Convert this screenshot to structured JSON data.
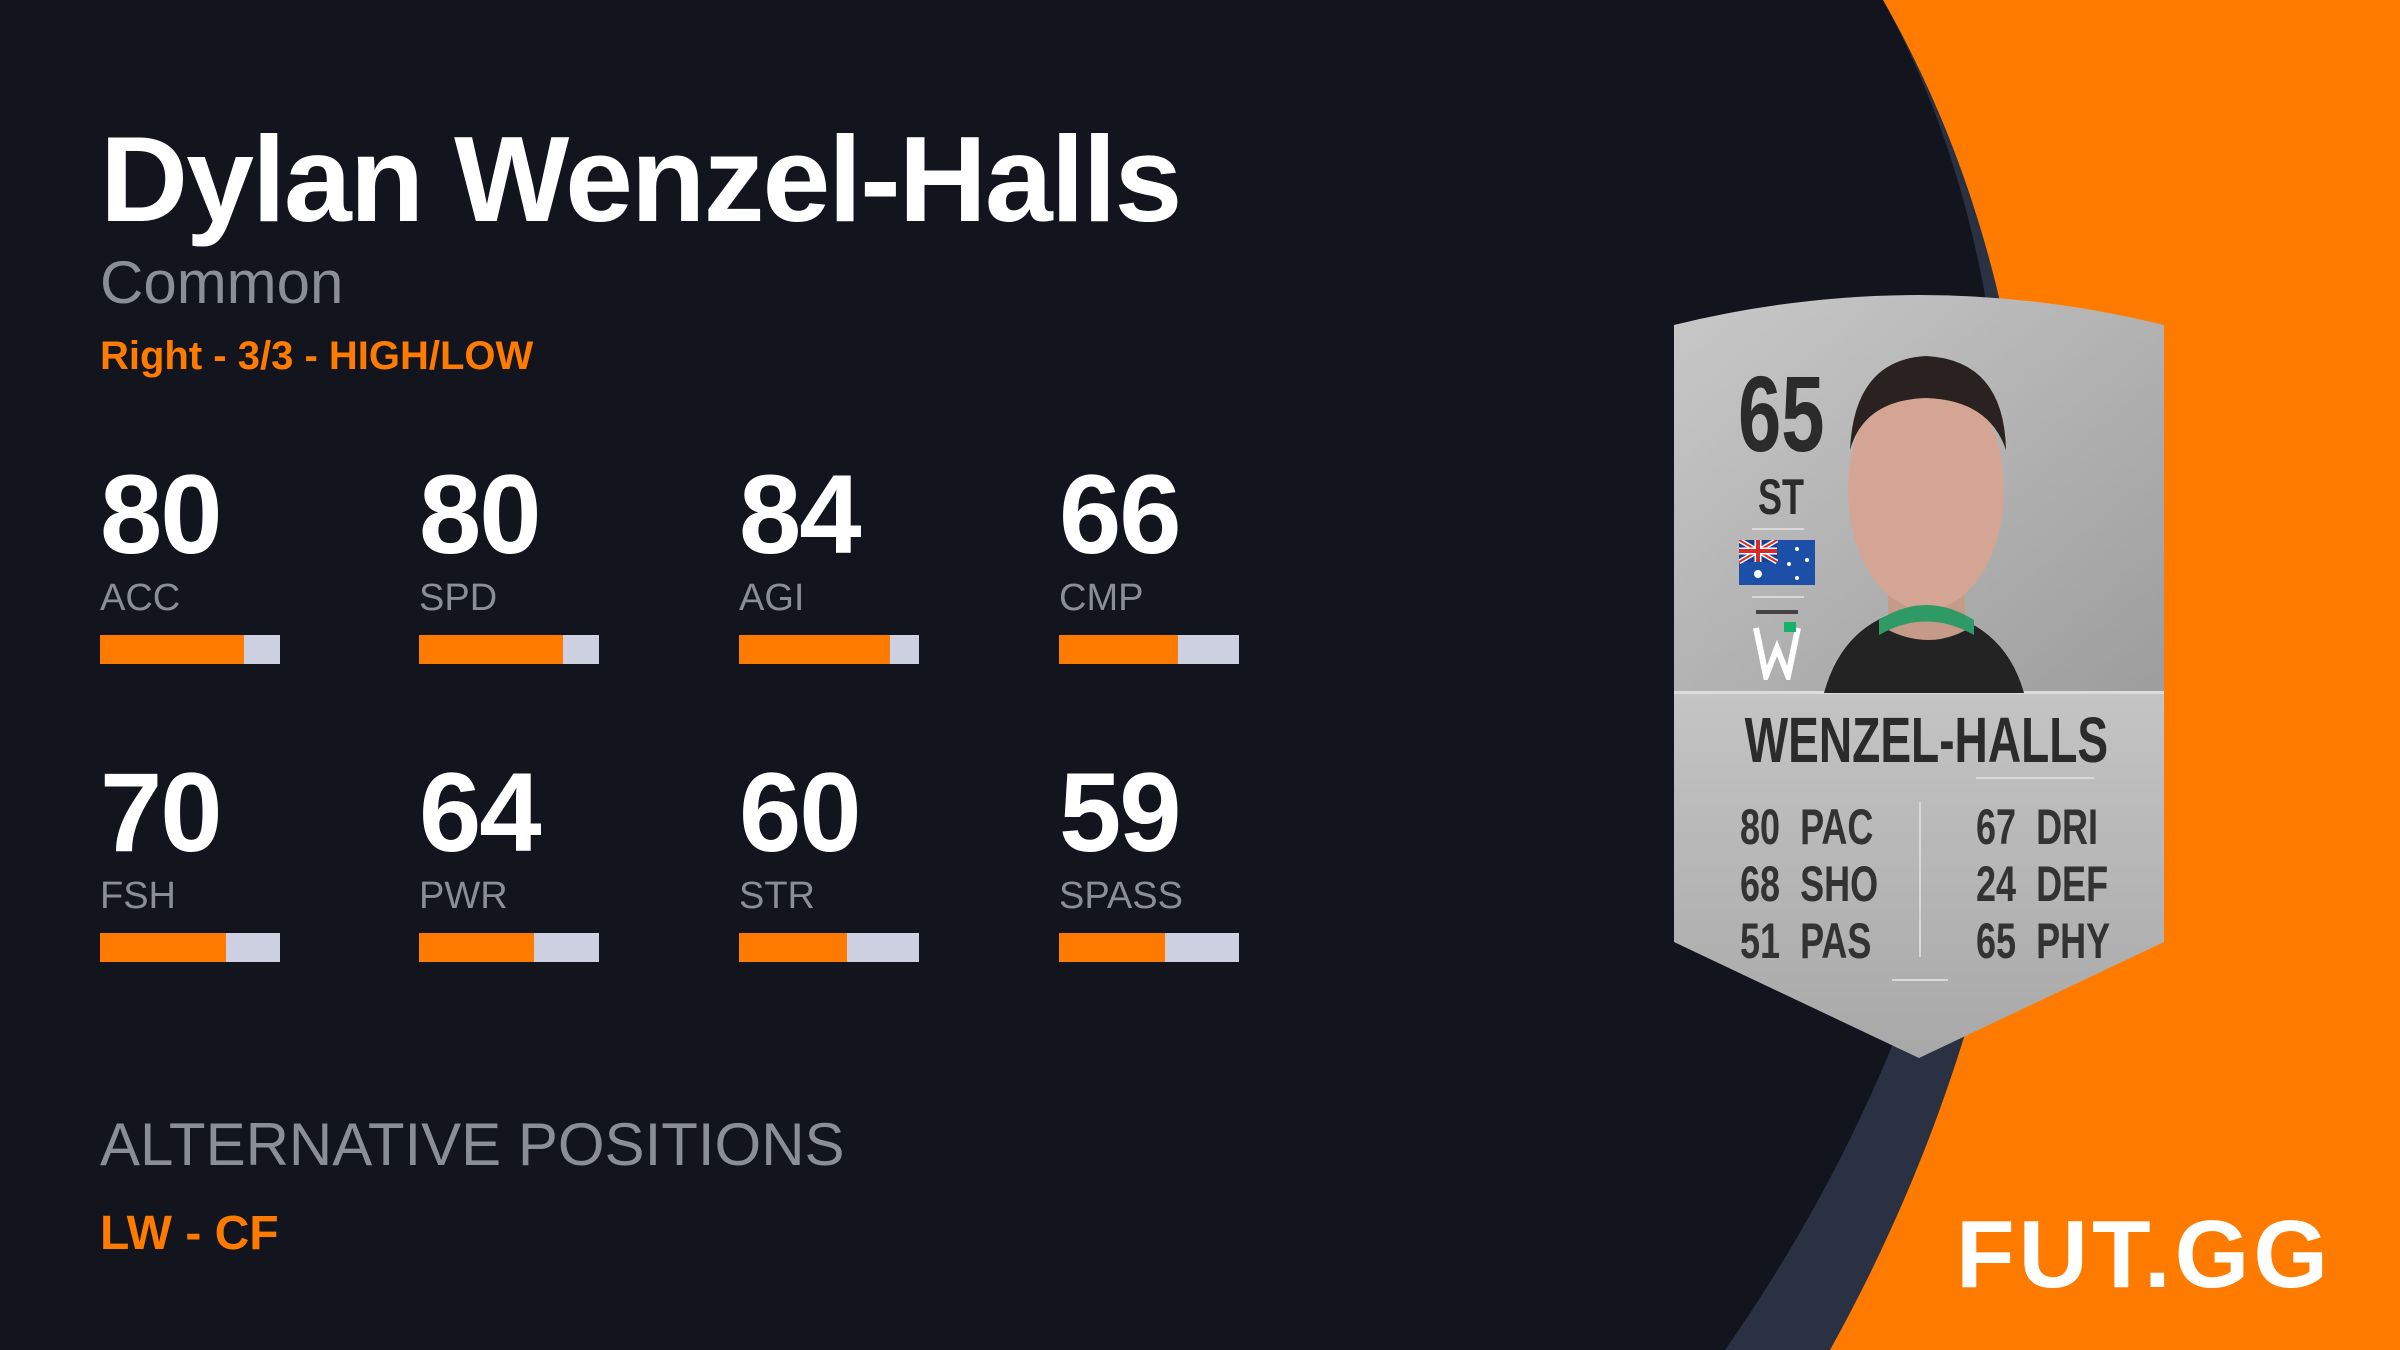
{
  "player": {
    "name": "Dylan Wenzel-Halls",
    "rarity": "Common",
    "workrates": "Right - 3/3 - HIGH/LOW"
  },
  "stats": [
    {
      "value": 80,
      "label": "ACC"
    },
    {
      "value": 80,
      "label": "SPD"
    },
    {
      "value": 84,
      "label": "AGI"
    },
    {
      "value": 66,
      "label": "CMP"
    },
    {
      "value": 70,
      "label": "FSH"
    },
    {
      "value": 64,
      "label": "PWR"
    },
    {
      "value": 60,
      "label": "STR"
    },
    {
      "value": 59,
      "label": "SPASS"
    }
  ],
  "alternative_positions": {
    "title": "ALTERNATIVE POSITIONS",
    "value": "LW - CF"
  },
  "card": {
    "rating": "65",
    "position": "ST",
    "nation_flag": "australia-flag-icon",
    "club_badge": "western-united-badge-icon",
    "name": "WENZEL-HALLS",
    "left_stats": [
      {
        "value": "80",
        "label": "PAC"
      },
      {
        "value": "68",
        "label": "SHO"
      },
      {
        "value": "51",
        "label": "PAS"
      }
    ],
    "right_stats": [
      {
        "value": "67",
        "label": "DRI"
      },
      {
        "value": "24",
        "label": "DEF"
      },
      {
        "value": "65",
        "label": "PHY"
      }
    ]
  },
  "brand": {
    "logo_text": "FUT.GG"
  },
  "colors": {
    "background": "#12141e",
    "accent": "#ff7b00",
    "bar_track": "#cdd0e0",
    "band": "#2a3142",
    "card": "#bdbdbd"
  }
}
